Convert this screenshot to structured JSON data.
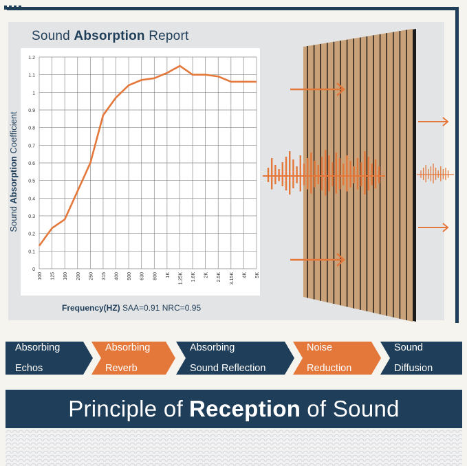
{
  "report": {
    "title_pre": "Sound ",
    "title_bold": "Absorption",
    "title_post": " Report",
    "ylabel_pre": "Sound ",
    "ylabel_bold": "Absorption",
    "ylabel_post": " Coefficient",
    "freq_label": "Frequency(HZ)",
    "saa": "SAA=0.91",
    "nrc": "NRC=0.95"
  },
  "chart_data": {
    "type": "line",
    "title": "Sound Absorption Report",
    "xlabel": "Frequency(HZ)",
    "ylabel": "Sound Absorption Coefficient",
    "categories": [
      "100",
      "125",
      "160",
      "200",
      "250",
      "315",
      "400",
      "500",
      "630",
      "800",
      "1K",
      "1.25K",
      "1.6K",
      "2K",
      "2.5K",
      "3.15K",
      "4K",
      "5K"
    ],
    "yticks": [
      "0",
      "0.1",
      "0.2",
      "0.3",
      "0.4",
      "0.5",
      "0.6",
      "0.7",
      "0.8",
      "0.9",
      "1",
      "1.1",
      "1.2"
    ],
    "ylim": [
      0,
      1.2
    ],
    "grid": true,
    "series": [
      {
        "values": [
          0.13,
          0.23,
          0.28,
          0.44,
          0.6,
          0.87,
          0.97,
          1.04,
          1.07,
          1.08,
          1.11,
          1.15,
          1.1,
          1.1,
          1.09,
          1.06,
          1.06,
          1.06
        ],
        "color": "#e4773a"
      }
    ]
  },
  "steps": [
    {
      "line1": "Absorbing",
      "line2": "Echos",
      "color": "#1f3e5a"
    },
    {
      "line1": "Absorbing",
      "line2": "Reverb",
      "color": "#e4773a"
    },
    {
      "line1": "Absorbing",
      "line2": "Sound Reflection",
      "color": "#1f3e5a"
    },
    {
      "line1": "Noise",
      "line2": "Reduction",
      "color": "#e4773a"
    },
    {
      "line1": "Sound",
      "line2": "Diffusion",
      "color": "#1f3e5a"
    }
  ],
  "footer": {
    "pre": "Principle of",
    "bold": "Reception",
    "post": "of Sound"
  },
  "colors": {
    "navy": "#1f3e5a",
    "orange": "#e4773a",
    "wood": "#c9a27a",
    "panel_bg": "#e3e4e5"
  },
  "icons": [
    "arrow-right-icon",
    "sound-wave-icon",
    "acoustic-panel-icon"
  ]
}
